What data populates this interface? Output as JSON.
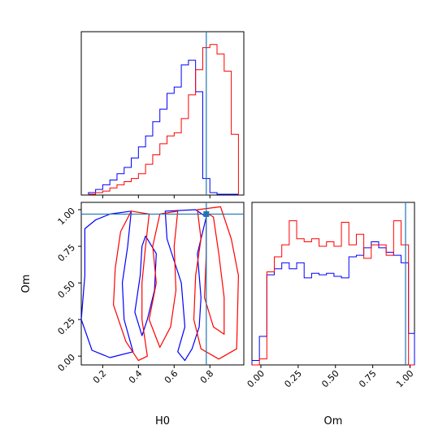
{
  "chart_data": [
    {
      "type": "histogram",
      "panel": "H0 marginal",
      "xlim": [
        0.08,
        0.99
      ],
      "truth": 0.78,
      "bins": [
        0.12,
        0.16,
        0.2,
        0.24,
        0.28,
        0.32,
        0.36,
        0.4,
        0.44,
        0.48,
        0.52,
        0.56,
        0.6,
        0.64,
        0.68,
        0.72,
        0.76,
        0.8,
        0.84,
        0.88,
        0.92,
        0.96
      ],
      "series": [
        {
          "color": "#0000ff",
          "counts": [
            0.01,
            0.03,
            0.06,
            0.09,
            0.13,
            0.17,
            0.23,
            0.3,
            0.37,
            0.46,
            0.54,
            0.64,
            0.68,
            0.82,
            0.85,
            0.65,
            0.1,
            0.01,
            0,
            0,
            0
          ]
        },
        {
          "color": "#ff0000",
          "counts": [
            0,
            0.01,
            0.02,
            0.04,
            0.06,
            0.08,
            0.1,
            0.13,
            0.19,
            0.25,
            0.32,
            0.37,
            0.39,
            0.48,
            0.63,
            0.79,
            0.93,
            0.95,
            0.89,
            0.78,
            0.38
          ]
        }
      ]
    },
    {
      "type": "contour",
      "panel": "H0 vs Om",
      "xlabel": "H0",
      "ylabel": "Om",
      "xlim": [
        0.08,
        0.99
      ],
      "ylim": [
        -0.06,
        1.05
      ],
      "xticks": [
        "0.2",
        "0.4",
        "0.6",
        "0.8"
      ],
      "yticks": [
        "0.00",
        "0.25",
        "0.50",
        "0.75",
        "1.00"
      ],
      "truth": {
        "H0": 0.78,
        "Om": 0.97
      },
      "series": [
        {
          "color": "#0000ff",
          "contours": [
            [
              [
                0.1,
                0.87
              ],
              [
                0.16,
                0.93
              ],
              [
                0.24,
                0.97
              ],
              [
                0.36,
                0.99
              ],
              [
                0.34,
                0.75
              ],
              [
                0.31,
                0.5
              ],
              [
                0.32,
                0.25
              ],
              [
                0.37,
                0.03
              ],
              [
                0.24,
                -0.01
              ],
              [
                0.14,
                0.04
              ],
              [
                0.08,
                0.25
              ],
              [
                0.1,
                0.55
              ]
            ],
            [
              [
                0.55,
                0.99
              ],
              [
                0.72,
                1.0
              ],
              [
                0.78,
                0.95
              ],
              [
                0.73,
                0.7
              ],
              [
                0.75,
                0.4
              ],
              [
                0.74,
                0.2
              ],
              [
                0.7,
                0.05
              ],
              [
                0.66,
                -0.03
              ],
              [
                0.62,
                0.03
              ],
              [
                0.66,
                0.2
              ],
              [
                0.64,
                0.5
              ],
              [
                0.56,
                0.8
              ]
            ],
            [
              [
                0.44,
                0.82
              ],
              [
                0.5,
                0.7
              ],
              [
                0.49,
                0.45
              ],
              [
                0.45,
                0.25
              ],
              [
                0.42,
                0.14
              ],
              [
                0.38,
                0.3
              ],
              [
                0.41,
                0.55
              ],
              [
                0.42,
                0.75
              ]
            ]
          ]
        },
        {
          "color": "#ff0000",
          "contours": [
            [
              [
                0.36,
                0.99
              ],
              [
                0.46,
                0.97
              ],
              [
                0.44,
                0.75
              ],
              [
                0.42,
                0.5
              ],
              [
                0.42,
                0.25
              ],
              [
                0.45,
                0.0
              ],
              [
                0.4,
                -0.03
              ],
              [
                0.33,
                0.1
              ],
              [
                0.26,
                0.35
              ],
              [
                0.27,
                0.6
              ],
              [
                0.3,
                0.85
              ]
            ],
            [
              [
                0.46,
                0.25
              ],
              [
                0.5,
                0.5
              ],
              [
                0.48,
                0.75
              ],
              [
                0.52,
                0.97
              ],
              [
                0.62,
                0.99
              ],
              [
                0.6,
                0.75
              ],
              [
                0.61,
                0.45
              ],
              [
                0.58,
                0.2
              ],
              [
                0.52,
                0.06
              ]
            ],
            [
              [
                0.73,
                1.0
              ],
              [
                0.86,
                1.02
              ],
              [
                0.92,
                0.8
              ],
              [
                0.96,
                0.55
              ],
              [
                0.95,
                0.05
              ],
              [
                0.85,
                -0.02
              ],
              [
                0.75,
                0.05
              ],
              [
                0.71,
                0.25
              ],
              [
                0.72,
                0.55
              ],
              [
                0.75,
                0.8
              ]
            ],
            [
              [
                0.78,
                0.98
              ],
              [
                0.82,
                0.95
              ],
              [
                0.85,
                0.7
              ],
              [
                0.88,
                0.4
              ],
              [
                0.88,
                0.15
              ],
              [
                0.82,
                0.2
              ],
              [
                0.77,
                0.4
              ],
              [
                0.78,
                0.7
              ]
            ]
          ]
        }
      ]
    },
    {
      "type": "histogram",
      "panel": "Om marginal",
      "xlabel": "Om",
      "xlim": [
        -0.06,
        1.03
      ],
      "xticks": [
        "0.00",
        "0.25",
        "0.50",
        "0.75",
        "1.00"
      ],
      "truth": 0.97,
      "bins": [
        -0.06,
        -0.01,
        0.04,
        0.09,
        0.14,
        0.19,
        0.24,
        0.29,
        0.34,
        0.39,
        0.44,
        0.49,
        0.54,
        0.59,
        0.64,
        0.69,
        0.74,
        0.79,
        0.84,
        0.89,
        0.94,
        0.99,
        1.03
      ],
      "series": [
        {
          "color": "#0000ff",
          "counts": [
            0.03,
            0.19,
            0.6,
            0.64,
            0.68,
            0.64,
            0.68,
            0.58,
            0.61,
            0.6,
            0.61,
            0.59,
            0.58,
            0.72,
            0.73,
            0.78,
            0.82,
            0.78,
            0.75,
            0.73,
            0.68,
            0.21
          ]
        },
        {
          "color": "#ff0000",
          "counts": [
            0,
            0.04,
            0.62,
            0.72,
            0.8,
            0.96,
            0.84,
            0.82,
            0.84,
            0.79,
            0.82,
            0.79,
            0.95,
            0.8,
            0.87,
            0.71,
            0.8,
            0.8,
            0.73,
            0.96,
            0.8,
            0
          ]
        }
      ]
    }
  ]
}
